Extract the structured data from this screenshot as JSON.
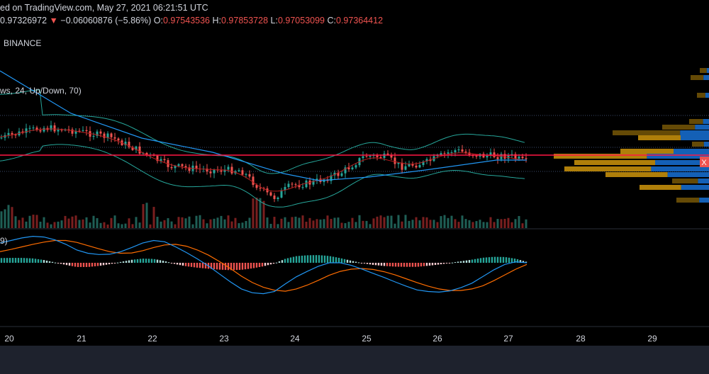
{
  "header": {
    "line1": "ed on TradingView.com, May 27, 2021 06:21:51 UTC",
    "price": "0.97326972",
    "arrow": "▼",
    "change": "−0.06060876 (−5.86%)",
    "o_label": "O:",
    "o_value": "0.97543536",
    "h_label": "H:",
    "h_value": "0.97853728",
    "l_label": "L:",
    "l_value": "0.97053099",
    "c_label": "C:",
    "c_value": "0.97364412"
  },
  "exchange": "BINANCE",
  "indicator1_label": "ws, 24, Up/Down, 70)",
  "indicator2_label": "9)",
  "price_tag": "X",
  "colors": {
    "up": "#26a69a",
    "down": "#ef5350",
    "resistance": "#ff1744",
    "ma_blue": "#2196f3",
    "ma_red": "#b71c1c",
    "band": "#26a69a",
    "macd": "#2196f3",
    "signal": "#ff6d00",
    "vp_up": "#1565c0",
    "vp_down": "#b8860b"
  },
  "chart_data": {
    "type": "candlestick",
    "x_ticks": [
      "20",
      "21",
      "22",
      "23",
      "24",
      "25",
      "26",
      "27",
      "28",
      "29"
    ],
    "macd": [
      0.62,
      0.7,
      0.78,
      0.83,
      0.81,
      0.72,
      0.58,
      0.4,
      0.3,
      0.26,
      0.27,
      0.35,
      0.48,
      0.62,
      0.7,
      0.66,
      0.5,
      0.32,
      0.12,
      -0.1,
      -0.35,
      -0.6,
      -0.82,
      -0.94,
      -0.97,
      -0.9,
      -0.66,
      -0.44,
      -0.27,
      -0.11,
      0.0,
      0.0,
      -0.08,
      -0.2,
      -0.33,
      -0.46,
      -0.6,
      -0.73,
      -0.85,
      -0.9,
      -0.92,
      -0.88,
      -0.78,
      -0.64,
      -0.43,
      -0.22,
      -0.05,
      0.03,
      0.0
    ],
    "signal": [
      0.35,
      0.42,
      0.5,
      0.58,
      0.65,
      0.7,
      0.7,
      0.64,
      0.54,
      0.44,
      0.35,
      0.3,
      0.31,
      0.38,
      0.48,
      0.56,
      0.58,
      0.52,
      0.4,
      0.24,
      0.04,
      -0.18,
      -0.42,
      -0.62,
      -0.77,
      -0.86,
      -0.89,
      -0.82,
      -0.7,
      -0.55,
      -0.39,
      -0.27,
      -0.2,
      -0.18,
      -0.21,
      -0.28,
      -0.38,
      -0.5,
      -0.62,
      -0.73,
      -0.82,
      -0.87,
      -0.87,
      -0.82,
      -0.72,
      -0.56,
      -0.38,
      -0.2,
      -0.05
    ]
  }
}
